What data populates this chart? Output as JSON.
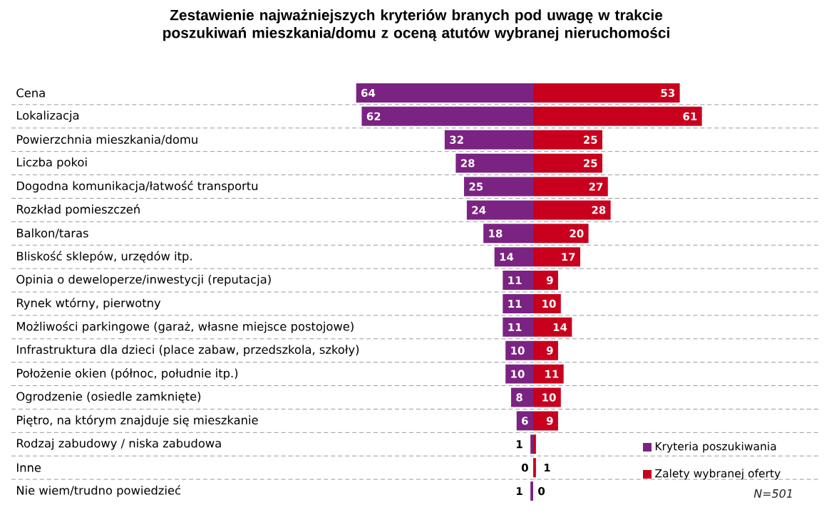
{
  "chart_data": [
    {
      "type": "bar",
      "orientation": "horizontal",
      "title": "Zestawienie najważniejszych kryteriów branych pod uwagę w trakcie poszukiwań mieszkania/domu z oceną  atutów wybranej nieruchomości",
      "categories": [
        "Cena",
        "Lokalizacja",
        "Powierzchnia mieszkania/domu",
        "Liczba pokoi",
        "Dogodna komunikacja/łatwość transportu",
        "Rozkład pomieszczeń",
        "Balkon/taras",
        "Bliskość sklepów, urzędów itp.",
        "Opinia o deweloperze/inwestycji (reputacja)",
        "Rynek wtórny, pierwotny",
        "Możliwości parkingowe (garaż, własne miejsce postojowe)",
        "Infrastruktura dla dzieci (place zabaw, przedszkola, szkoły)",
        "Położenie okien (północ, południe itp.)",
        "Ogrodzenie (osiedle zamknięte)",
        "Piętro, na którym znajduje się mieszkanie",
        "Rodzaj zabudowy / niska zabudowa",
        "Inne",
        "Nie wiem/trudno powiedzieć"
      ],
      "series": [
        {
          "name": "Kryteria poszukiwania",
          "color": "#7b2382",
          "values": [
            64,
            62,
            32,
            28,
            25,
            24,
            18,
            14,
            11,
            11,
            11,
            10,
            10,
            8,
            6,
            1,
            0,
            1
          ]
        }
      ],
      "data_labels": true,
      "xlim": [
        64,
        0
      ],
      "tick_labels": "y",
      "legend": "bottom right"
    },
    {
      "type": "bar",
      "orientation": "horizontal",
      "categories": [
        null,
        null,
        null,
        null,
        null,
        null,
        null,
        null,
        null,
        null,
        null,
        null,
        null,
        null,
        null,
        null,
        null,
        null
      ],
      "series": [
        {
          "name": "Zalety wybranej oferty",
          "color": "#c8001e",
          "values": [
            53,
            61,
            25,
            25,
            27,
            28,
            20,
            17,
            9,
            10,
            14,
            9,
            11,
            10,
            9,
            1,
            1,
            0
          ],
          "value_labels": [
            "53",
            "61",
            "25",
            "25",
            "27",
            "28",
            "20",
            "17",
            "9",
            "10",
            "14",
            "9",
            "11",
            "10",
            "9",
            null,
            "1",
            "0"
          ]
        }
      ],
      "xlim": [
        0,
        61
      ],
      "tick_labels": false,
      "legend": "bottom right",
      "annotations": [
        "N=501"
      ]
    }
  ]
}
